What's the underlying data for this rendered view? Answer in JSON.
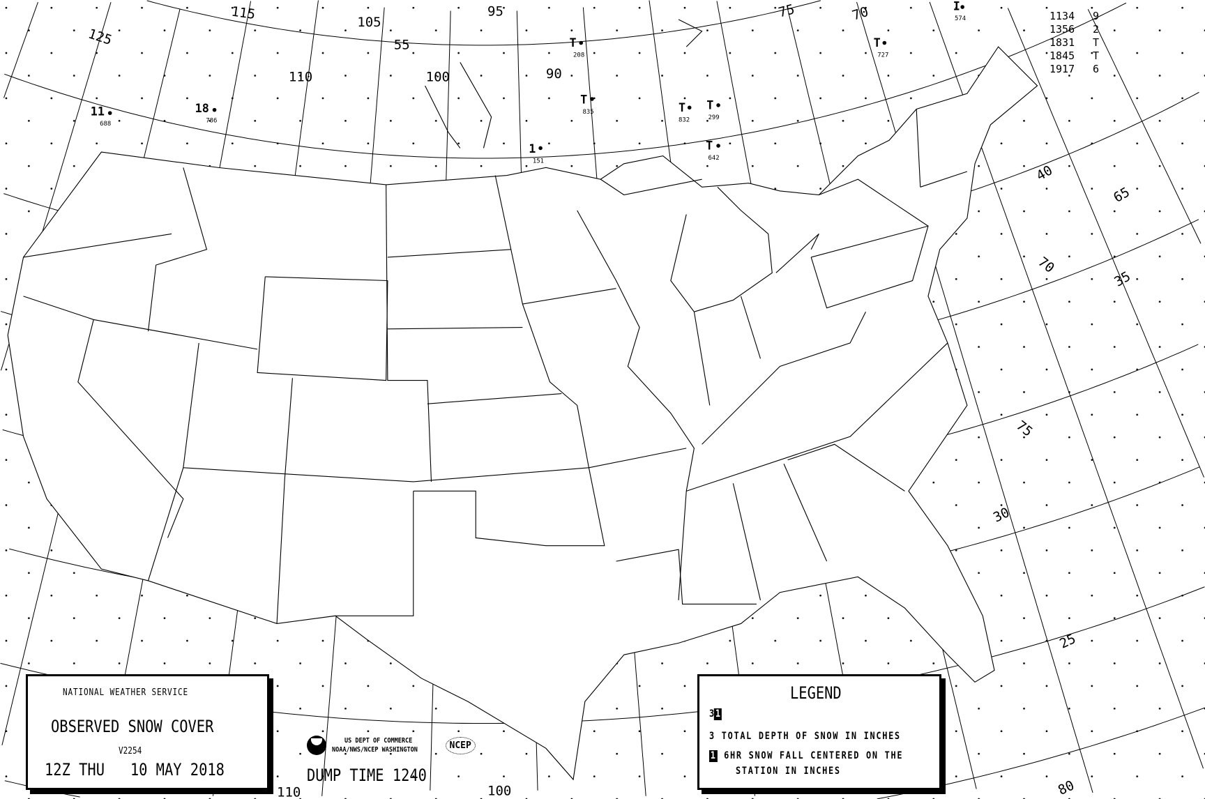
{
  "title_box": {
    "agency": "NATIONAL WEATHER SERVICE",
    "product": "OBSERVED SNOW COVER",
    "version": "V2254",
    "valid_time": "12Z THU   10 MAY 2018"
  },
  "credits": {
    "line1": "US DEPT OF COMMERCE",
    "line2": "NOAA/NWS/NCEP WASHINGTON",
    "ncep_logo": "NCEP",
    "dump_time": "DUMP TIME 1240"
  },
  "legend": {
    "title": "LEGEND",
    "sample_depth": "3",
    "sample_fall": "1",
    "depth_desc": "3 TOTAL DEPTH OF SNOW IN INCHES",
    "fall_marker": "1",
    "fall_desc_1": "6HR SNOW FALL CENTERED ON THE",
    "fall_desc_2": "STATION IN INCHES"
  },
  "observation_table": [
    {
      "time": "1134",
      "value": "9"
    },
    {
      "time": "1356",
      "value": "2"
    },
    {
      "time": "1831",
      "value": "T"
    },
    {
      "time": "1845",
      "value": "T"
    },
    {
      "time": "1917",
      "value": "6"
    }
  ],
  "stations": [
    {
      "value": "11",
      "id": "688"
    },
    {
      "value": "18",
      "id": "786"
    },
    {
      "value": "T",
      "id": "208"
    },
    {
      "value": "T",
      "id": "835"
    },
    {
      "value": "1",
      "id": "151"
    },
    {
      "value": "T",
      "id": "832"
    },
    {
      "value": "T",
      "id": "299"
    },
    {
      "value": "T",
      "id": "642"
    },
    {
      "value": "T",
      "id": "727"
    },
    {
      "value": "I",
      "id": "574"
    }
  ],
  "graticule_labels": {
    "lon_125": "125",
    "lon_115": "115",
    "lon_105": "105",
    "lon_95": "95",
    "lon_110": "110",
    "lon_100": "100",
    "lon_90": "90",
    "lon_75": "75",
    "lon_70": "70",
    "lon_65": "65",
    "lon_70e": "70",
    "lon_75e": "75",
    "lon_80": "80",
    "lon_110b": "110",
    "lon_100b": "100",
    "lat_55": "55",
    "lat_40": "40",
    "lat_35": "35",
    "lat_30": "30",
    "lat_25": "25"
  },
  "colors": {
    "ink": "#000000",
    "background": "#ffffff"
  }
}
